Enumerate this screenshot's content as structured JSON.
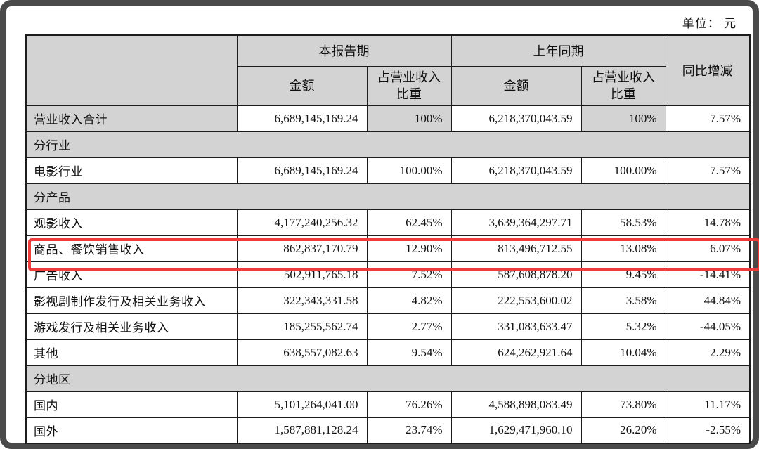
{
  "unit_label": "单位： 元",
  "colors": {
    "frame": "#4a4a4a",
    "cell_shading": "#d3d3d3",
    "table_border": "#1c1c1c",
    "highlight_red": "#ee3b3b"
  },
  "table": {
    "header": {
      "group_current": "本报告期",
      "group_prior": "上年同期",
      "yoy": "同比增减",
      "amount": "金额",
      "pct": "占营业收入\n比重"
    },
    "rows": [
      {
        "type": "data",
        "shade": "alt",
        "label": "营业收入合计",
        "amount1": "6,689,145,169.24",
        "pct1": "100%",
        "amount2": "6,218,370,043.59",
        "pct2": "100%",
        "yoy": "7.57%"
      },
      {
        "type": "section",
        "label": "分行业"
      },
      {
        "type": "data",
        "label": "电影行业",
        "amount1": "6,689,145,169.24",
        "pct1": "100.00%",
        "amount2": "6,218,370,043.59",
        "pct2": "100.00%",
        "yoy": "7.57%"
      },
      {
        "type": "section",
        "label": "分产品"
      },
      {
        "type": "data",
        "label": "观影收入",
        "amount1": "4,177,240,256.32",
        "pct1": "62.45%",
        "amount2": "3,639,364,297.71",
        "pct2": "58.53%",
        "yoy": "14.78%"
      },
      {
        "type": "data",
        "highlighted": true,
        "label": "商品、餐饮销售收入",
        "amount1": "862,837,170.79",
        "pct1": "12.90%",
        "amount2": "813,496,712.55",
        "pct2": "13.08%",
        "yoy": "6.07%"
      },
      {
        "type": "data",
        "label": "广告收入",
        "amount1": "502,911,765.18",
        "pct1": "7.52%",
        "amount2": "587,608,878.20",
        "pct2": "9.45%",
        "yoy": "-14.41%"
      },
      {
        "type": "data",
        "label": "影视剧制作发行及相关业务收入",
        "amount1": "322,343,331.58",
        "pct1": "4.82%",
        "amount2": "222,553,600.02",
        "pct2": "3.58%",
        "yoy": "44.84%"
      },
      {
        "type": "data",
        "label": "游戏发行及相关业务收入",
        "amount1": "185,255,562.74",
        "pct1": "2.77%",
        "amount2": "331,083,633.47",
        "pct2": "5.32%",
        "yoy": "-44.05%"
      },
      {
        "type": "data",
        "label": "其他",
        "amount1": "638,557,082.63",
        "pct1": "9.54%",
        "amount2": "624,262,921.64",
        "pct2": "10.04%",
        "yoy": "2.29%"
      },
      {
        "type": "section",
        "label": "分地区"
      },
      {
        "type": "data",
        "label": "国内",
        "amount1": "5,101,264,041.00",
        "pct1": "76.26%",
        "amount2": "4,588,898,083.49",
        "pct2": "73.80%",
        "yoy": "11.17%"
      },
      {
        "type": "data",
        "label": "国外",
        "amount1": "1,587,881,128.24",
        "pct1": "23.74%",
        "amount2": "1,629,471,960.10",
        "pct2": "26.20%",
        "yoy": "-2.55%"
      }
    ]
  }
}
